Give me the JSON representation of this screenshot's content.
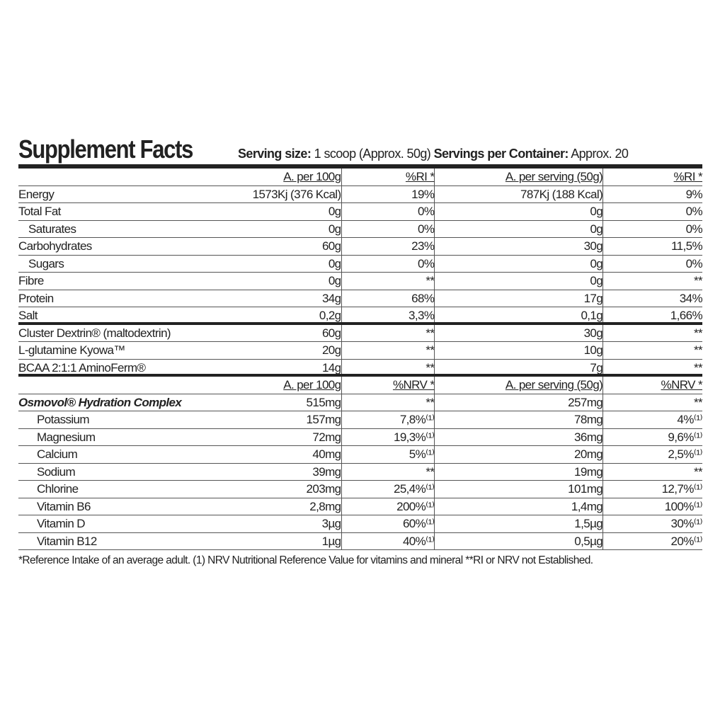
{
  "title": "Supplement Facts",
  "serving_size_label": "Serving size:",
  "serving_size_value": "1 scoop (Approx. 50g)",
  "servings_label": "Servings per Container:",
  "servings_value": "Approx. 20",
  "header1": {
    "label": "",
    "per100": "A. per 100g",
    "ri100": "%RI *",
    "perServing": "A. per serving (50g)",
    "riServing": "%RI *"
  },
  "nutrition": [
    {
      "label": "Energy",
      "indent": 0,
      "per100": "1573Kj (376 Kcal)",
      "ri100": "19%",
      "perServing": "787Kj (188 Kcal)",
      "riServing": "9%"
    },
    {
      "label": "Total Fat",
      "indent": 0,
      "per100": "0g",
      "ri100": "0%",
      "perServing": "0g",
      "riServing": "0%"
    },
    {
      "label": "Saturates",
      "indent": 1,
      "per100": "0g",
      "ri100": "0%",
      "perServing": "0g",
      "riServing": "0%"
    },
    {
      "label": "Carbohydrates",
      "indent": 0,
      "per100": "60g",
      "ri100": "23%",
      "perServing": "30g",
      "riServing": "11,5%"
    },
    {
      "label": "Sugars",
      "indent": 1,
      "per100": "0g",
      "ri100": "0%",
      "perServing": "0g",
      "riServing": "0%"
    },
    {
      "label": "Fibre",
      "indent": 0,
      "per100": "0g",
      "ri100": "**",
      "perServing": "0g",
      "riServing": "**"
    },
    {
      "label": "Protein",
      "indent": 0,
      "per100": "34g",
      "ri100": "68%",
      "perServing": "17g",
      "riServing": "34%"
    },
    {
      "label": "Salt",
      "indent": 0,
      "per100": "0,2g",
      "ri100": "3,3%",
      "perServing": "0,1g",
      "riServing": "1,66%"
    }
  ],
  "ingredients": [
    {
      "label": "Cluster Dextrin® (maltodextrin)",
      "per100": "60g",
      "ri100": "**",
      "perServing": "30g",
      "riServing": "**"
    },
    {
      "label": "L-glutamine Kyowa™",
      "per100": "20g",
      "ri100": "**",
      "perServing": "10g",
      "riServing": "**"
    },
    {
      "label": "BCAA 2:1:1 AminoFerm®",
      "per100": "14g",
      "ri100": "**",
      "perServing": "7g",
      "riServing": "**"
    }
  ],
  "header2": {
    "per100": "A. per 100g",
    "nrv100": "%NRV *",
    "perServing": "A. per serving (50g)",
    "nrvServing": "%NRV *"
  },
  "complex": {
    "label": "Osmovol® Hydration Complex",
    "per100": "515mg",
    "nrv100": "**",
    "perServing": "257mg",
    "nrvServing": "**"
  },
  "minerals": [
    {
      "label": "Potassium",
      "per100": "157mg",
      "nrv100": "7,8%⁽¹⁾",
      "perServing": "78mg",
      "nrvServing": "4%⁽¹⁾"
    },
    {
      "label": "Magnesium",
      "per100": "72mg",
      "nrv100": "19,3%⁽¹⁾",
      "perServing": "36mg",
      "nrvServing": "9,6%⁽¹⁾"
    },
    {
      "label": "Calcium",
      "per100": "40mg",
      "nrv100": "5%⁽¹⁾",
      "perServing": "20mg",
      "nrvServing": "2,5%⁽¹⁾"
    },
    {
      "label": "Sodium",
      "per100": "39mg",
      "nrv100": "**",
      "perServing": "19mg",
      "nrvServing": "**"
    },
    {
      "label": "Chlorine",
      "per100": "203mg",
      "nrv100": "25,4%⁽¹⁾",
      "perServing": "101mg",
      "nrvServing": "12,7%⁽¹⁾"
    },
    {
      "label": "Vitamin B6",
      "per100": "2,8mg",
      "nrv100": "200%⁽¹⁾",
      "perServing": "1,4mg",
      "nrvServing": "100%⁽¹⁾"
    },
    {
      "label": "Vitamin D",
      "per100": "3µg",
      "nrv100": "60%⁽¹⁾",
      "perServing": "1,5µg",
      "nrvServing": "30%⁽¹⁾"
    },
    {
      "label": "Vitamin B12",
      "per100": "1µg",
      "nrv100": "40%⁽¹⁾",
      "perServing": "0,5µg",
      "nrvServing": "20%⁽¹⁾"
    }
  ],
  "footer": "*Reference Intake of an average adult. (1) NRV Nutritional Reference Value for vitamins and mineral **RI or NRV not Established."
}
